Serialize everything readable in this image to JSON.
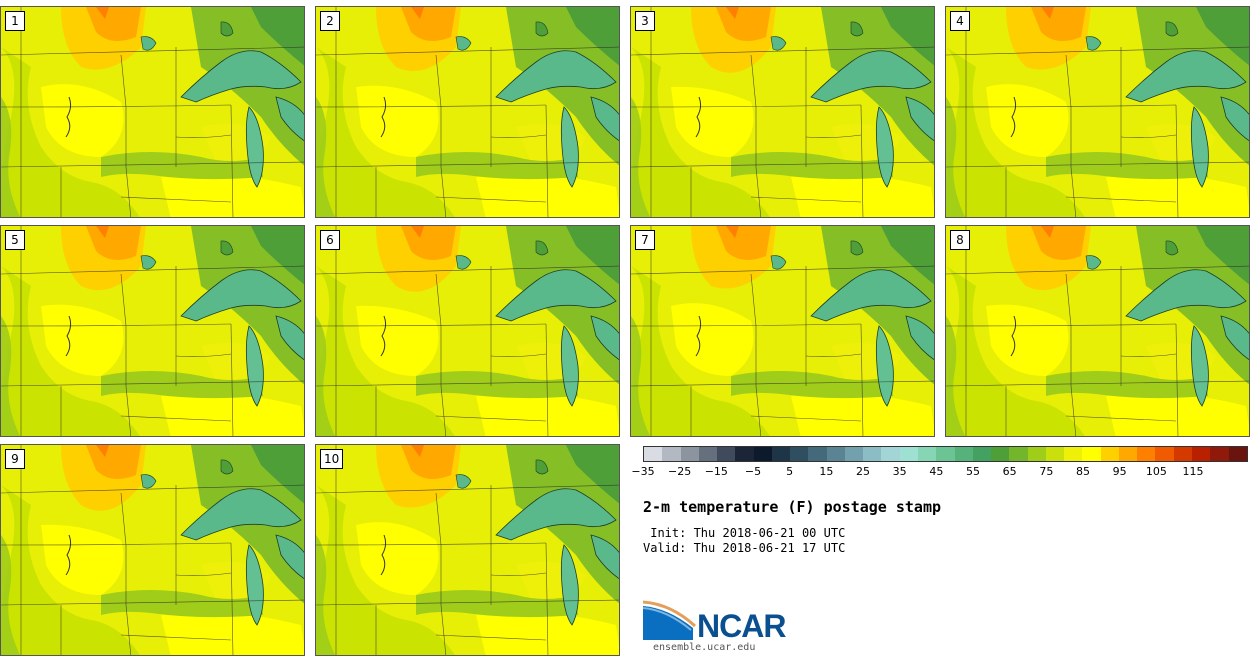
{
  "panels": [
    {
      "label": "1"
    },
    {
      "label": "2"
    },
    {
      "label": "3"
    },
    {
      "label": "4"
    },
    {
      "label": "5"
    },
    {
      "label": "6"
    },
    {
      "label": "7"
    },
    {
      "label": "8"
    },
    {
      "label": "9"
    },
    {
      "label": "10"
    }
  ],
  "colorbar": {
    "colors": [
      "#d9dde3",
      "#b3b9c2",
      "#8c94a0",
      "#666f7e",
      "#3f4a5c",
      "#1c2538",
      "#0d1a2e",
      "#1e3447",
      "#2f4f60",
      "#43697a",
      "#5a8494",
      "#72a0ad",
      "#8cbcc4",
      "#a4d5d6",
      "#9ee0d2",
      "#86d5b4",
      "#6cc495",
      "#55b27a",
      "#43a262",
      "#4f9f39",
      "#74b62b",
      "#a0cc1a",
      "#c9e00d",
      "#eef00a",
      "#ffff00",
      "#ffd000",
      "#ffa800",
      "#ff8000",
      "#f05a00",
      "#d43a00",
      "#b82000",
      "#8f1a0c",
      "#6a1410"
    ],
    "tick_labels": [
      "−35",
      "−25",
      "−15",
      "−5",
      "5",
      "15",
      "25",
      "35",
      "45",
      "55",
      "65",
      "75",
      "85",
      "95",
      "105",
      "115"
    ]
  },
  "title": "2-m temperature (F) postage stamp",
  "init": " Init: Thu 2018-06-21 00 UTC",
  "valid": "Valid: Thu 2018-06-21 17 UTC",
  "logo": {
    "text": "NCAR",
    "site": "ensemble.ucar.edu"
  }
}
